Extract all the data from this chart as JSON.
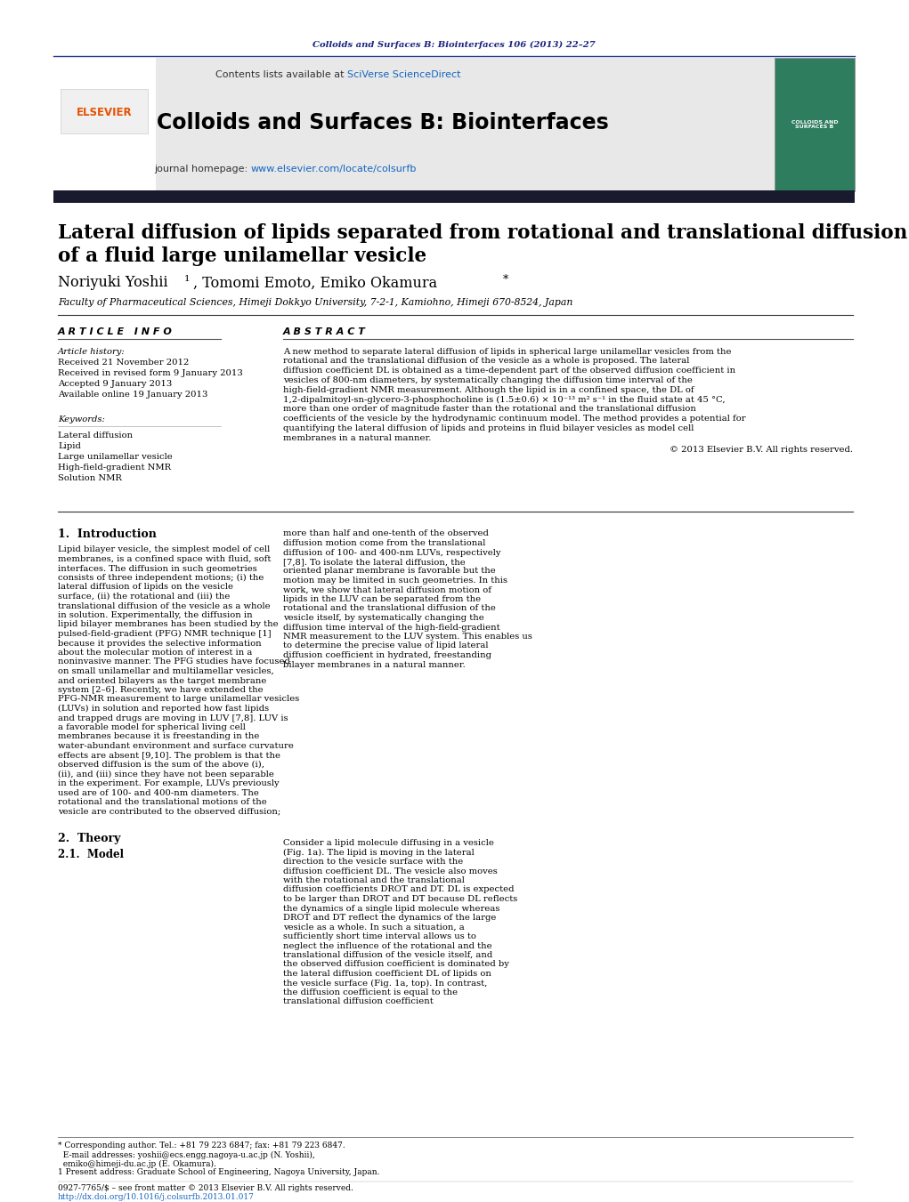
{
  "page_bg": "#ffffff",
  "top_journal_ref": "Colloids and Surfaces B: Biointerfaces 106 (2013) 22–27",
  "top_journal_ref_color": "#1a237e",
  "header_bg": "#e8e8e8",
  "header_sciverse_color": "#1565c0",
  "journal_title": "Colloids and Surfaces B: Biointerfaces",
  "journal_homepage_url_color": "#1565c0",
  "dark_bar_color": "#1a1a2e",
  "article_title_line1": "Lateral diffusion of lipids separated from rotational and translational diffusion",
  "article_title_line2": "of a fluid large unilamellar vesicle",
  "affiliation": "Faculty of Pharmaceutical Sciences, Himeji Dokkyo University, 7-2-1, Kamiohno, Himeji 670-8524, Japan",
  "section_article_info": "A R T I C L E   I N F O",
  "section_abstract": "A B S T R A C T",
  "article_history_label": "Article history:",
  "article_history": [
    "Received 21 November 2012",
    "Received in revised form 9 January 2013",
    "Accepted 9 January 2013",
    "Available online 19 January 2013"
  ],
  "keywords_label": "Keywords:",
  "keywords": [
    "Lateral diffusion",
    "Lipid",
    "Large unilamellar vesicle",
    "High-field-gradient NMR",
    "Solution NMR"
  ],
  "abstract_text": "A new method to separate lateral diffusion of lipids in spherical large unilamellar vesicles from the rotational and the translational diffusion of the vesicle as a whole is proposed. The lateral diffusion coefficient DL is obtained as a time-dependent part of the observed diffusion coefficient in vesicles of 800-nm diameters, by systematically changing the diffusion time interval of the high-field-gradient NMR measurement. Although the lipid is in a confined space, the DL of 1,2-dipalmitoyl-sn-glycero-3-phosphocholine is (1.5±0.6) × 10⁻¹³ m² s⁻¹ in the fluid state at 45 °C, more than one order of magnitude faster than the rotational and the translational diffusion coefficients of the vesicle by the hydrodynamic continuum model. The method provides a potential for quantifying the lateral diffusion of lipids and proteins in fluid bilayer vesicles as model cell membranes in a natural manner.",
  "copyright": "© 2013 Elsevier B.V. All rights reserved.",
  "intro_section": "1.  Introduction",
  "intro_col1": "   Lipid bilayer vesicle, the simplest model of cell membranes, is a confined space with fluid, soft interfaces. The diffusion in such geometries consists of three independent motions; (i) the lateral diffusion of lipids on the vesicle surface, (ii) the rotational and (iii) the translational diffusion of the vesicle as a whole in solution. Experimentally, the diffusion in lipid bilayer membranes has been studied by the pulsed-field-gradient (PFG) NMR technique [1] because it provides the selective information about the molecular motion of interest in a noninvasive manner. The PFG studies have focused on small unilamellar and multilamellar vesicles, and oriented bilayers as the target membrane system [2–6].    Recently, we have extended the PFG-NMR measurement to large unilamellar vesicles (LUVs) in solution and reported how fast lipids and trapped drugs are moving in LUV [7,8]. LUV is a favorable model for spherical living cell membranes because it is freestanding in the water-abundant environment and surface curvature effects are absent [9,10]. The problem is that the observed diffusion is the sum of the above (i), (ii), and (iii) since they have not been separable in the experiment. For example, LUVs previously used are of 100- and 400-nm diameters. The rotational and the translational motions of the vesicle are contributed to the observed diffusion;",
  "intro_col2": "more than half and one-tenth of the observed diffusion motion come from the translational diffusion of 100- and 400-nm LUVs, respectively [7,8]. To isolate the lateral diffusion, the oriented planar membrane is favorable but the motion may be limited in such geometries.    In this work, we show that lateral diffusion motion of lipids in the LUV can be separated from the rotational and the translational diffusion of the vesicle itself, by systematically changing the diffusion time interval of the high-field-gradient NMR measurement to the LUV system. This enables us to determine the precise value of lipid lateral diffusion coefficient in hydrated, freestanding bilayer membranes in a natural manner.",
  "theory_section": "2.  Theory",
  "theory_subsection": "2.1.  Model",
  "theory_col2": "   Consider a lipid molecule diffusing in a vesicle (Fig. 1a). The lipid is moving in the lateral direction to the vesicle surface with the diffusion coefficient DL. The vesicle also moves with the rotational and the translational diffusion coefficients DROT and DT. DL is expected to be larger than DROT and DT because DL reflects the dynamics of a single lipid molecule whereas DROT and DT reflect the dynamics of the large vesicle as a whole. In such a situation, a sufficiently short time interval allows us to neglect the influence of the rotational and the translational diffusion of the vesicle itself, and the observed diffusion coefficient is dominated by the lateral diffusion coefficient DL of lipids on the vesicle surface (Fig. 1a, top). In contrast, the diffusion coefficient is equal to the translational diffusion coefficient",
  "footer_footnote1": "* Corresponding author. Tel.: +81 79 223 6847; fax: +81 79 223 6847.",
  "footer_footnote2": "  E-mail addresses: yoshii@ecs.engg.nagoya-u.ac.jp (N. Yoshii),",
  "footer_footnote3": "  emiko@himeji-du.ac.jp (E. Okamura).",
  "footer_superscript": "1 Present address: Graduate School of Engineering, Nagoya University, Japan.",
  "footer_issn": "0927-7765/$ – see front matter © 2013 Elsevier B.V. All rights reserved.",
  "footer_doi": "http://dx.doi.org/10.1016/j.colsurfb.2013.01.017"
}
